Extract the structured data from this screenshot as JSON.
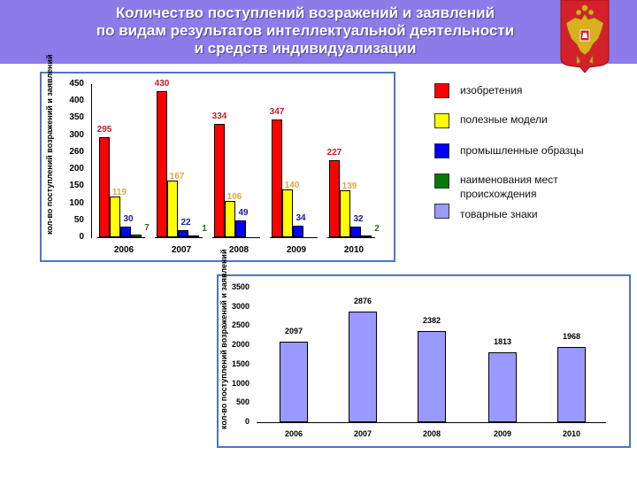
{
  "header": {
    "title_lines": [
      "Количество поступлений возражений и заявлений",
      "по видам результатов интеллектуальной деятельности",
      "и средств индивидуализации"
    ],
    "emblem_icon": "russian-coat-of-arms-icon",
    "background_color": "#8c7be9"
  },
  "chart_data": [
    {
      "type": "bar",
      "title": "",
      "ylabel": "кол-во поступлений возражений и заявлений",
      "xlabel": "",
      "categories": [
        "2006",
        "2007",
        "2008",
        "2009",
        "2010"
      ],
      "ylim": [
        0,
        450
      ],
      "yticks": [
        "0",
        "50",
        "100",
        "150",
        "200",
        "260",
        "300",
        "350",
        "400",
        "450"
      ],
      "grid": false,
      "legend_position": "right",
      "series": [
        {
          "name": "изобретения",
          "color": "#ff0000",
          "label_color": "#c0202a",
          "values": [
            295,
            430,
            334,
            347,
            227
          ]
        },
        {
          "name": "полезные модели",
          "color": "#ffff00",
          "label_color": "#e0a840",
          "values": [
            119,
            167,
            106,
            140,
            139
          ]
        },
        {
          "name": "промышленные образцы",
          "color": "#0000ff",
          "label_color": "#1a1a9a",
          "values": [
            30,
            22,
            49,
            34,
            32
          ]
        },
        {
          "name": "наименования мест происхождения",
          "color": "#087a08",
          "label_color": "#2a6a2a",
          "values": [
            7,
            1,
            null,
            null,
            2
          ]
        },
        {
          "name": "товарные знаки",
          "color": "#9999ff",
          "values": []
        }
      ]
    },
    {
      "type": "bar",
      "title": "",
      "ylabel": "кол-во поступлений возражений и заявлений",
      "xlabel": "",
      "categories": [
        "2006",
        "2007",
        "2008",
        "2009",
        "2010"
      ],
      "ylim": [
        0,
        3500
      ],
      "yticks": [
        "0",
        "500",
        "1000",
        "1500",
        "2000",
        "2500",
        "3000",
        "3500"
      ],
      "grid": false,
      "series": [
        {
          "name": "товарные знаки",
          "color": "#9999ff",
          "values": [
            2097,
            2876,
            2382,
            1813,
            1968
          ]
        }
      ]
    }
  ],
  "legend": {
    "items": [
      {
        "label": "изобретения",
        "color": "#ff0000"
      },
      {
        "label": "полезные модели",
        "color": "#ffff00"
      },
      {
        "label": "промышленные образцы",
        "color": "#0000ff"
      },
      {
        "label": "наименования мест\nпроисхождения",
        "label_line1": "наименования мест",
        "label_line2": "происхождения",
        "color": "#087a08"
      },
      {
        "label": "товарные знаки",
        "color": "#9999ff"
      }
    ]
  }
}
